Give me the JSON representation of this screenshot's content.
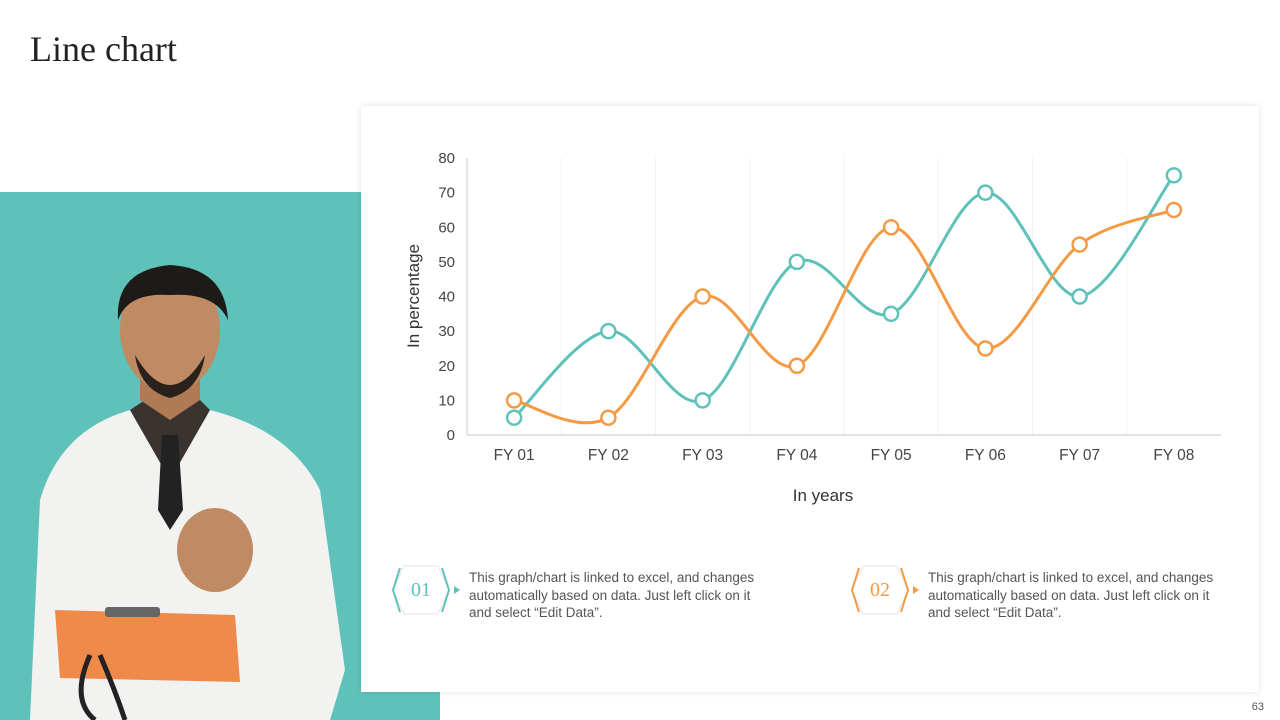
{
  "slide": {
    "title": "Line chart",
    "page_number": "63"
  },
  "colors": {
    "teal": "#5ec2bb",
    "orange": "#f59a44"
  },
  "notes": [
    {
      "number": "01",
      "color": "#5ec2bb",
      "text": "This graph/chart is linked to excel, and changes automatically based on data. Just left click on it and select “Edit Data”."
    },
    {
      "number": "02",
      "color": "#f59a44",
      "text": "This graph/chart is linked to excel, and changes automatically based on data. Just left click on it and select “Edit Data”."
    }
  ],
  "chart_data": {
    "type": "line",
    "smooth": true,
    "markers": "hollow-circle",
    "categories": [
      "FY 01",
      "FY 02",
      "FY 03",
      "FY 04",
      "FY 05",
      "FY 06",
      "FY 07",
      "FY 08"
    ],
    "series": [
      {
        "color": "#5ec2bb",
        "values": [
          5,
          30,
          10,
          50,
          35,
          70,
          40,
          75
        ]
      },
      {
        "color": "#f59a44",
        "values": [
          10,
          5,
          40,
          20,
          60,
          25,
          55,
          65
        ]
      }
    ],
    "xlabel": "In years",
    "ylabel": "In percentage",
    "ylim": [
      0,
      80
    ],
    "yticks": [
      0,
      10,
      20,
      30,
      40,
      50,
      60,
      70,
      80
    ],
    "grid": "vertical-faint",
    "legend": "none"
  }
}
